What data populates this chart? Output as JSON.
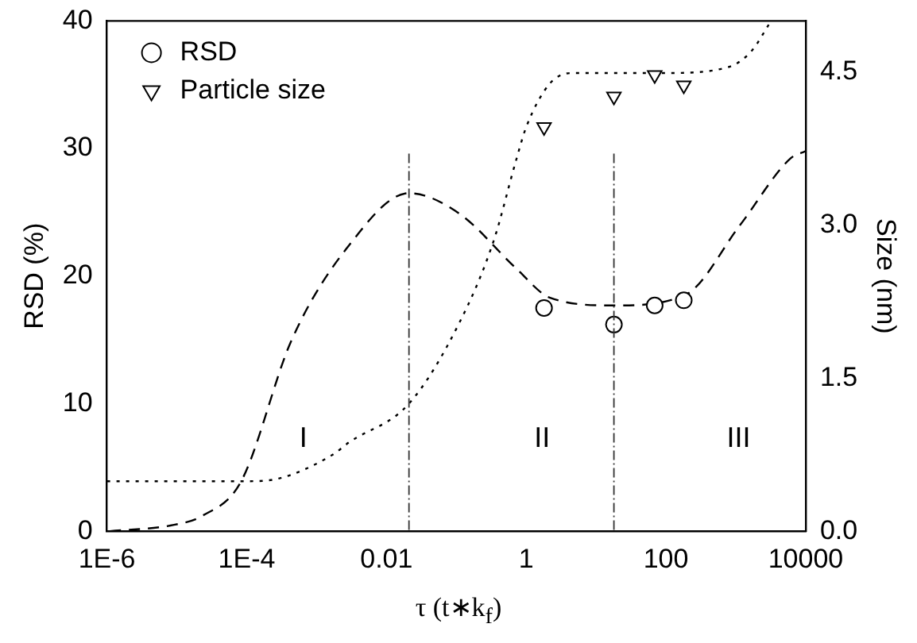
{
  "chart_data": {
    "type": "scatter",
    "xlabel": "τ (t∗k$_{f}$)",
    "ylabel": "RSD (%)",
    "y2label": "Size (nm)",
    "log": "x",
    "grid": false,
    "legend": "top left",
    "xlim": [
      1e-06,
      10000
    ],
    "xticks": [
      {
        "value": 1e-06,
        "label": "1E-6"
      },
      {
        "value": 0.0001,
        "label": "1E-4"
      },
      0.01,
      1,
      100,
      10000
    ],
    "ylim": [
      0,
      40
    ],
    "yticks": [
      0,
      10,
      20,
      30,
      40
    ],
    "y2lim": [
      0,
      5
    ],
    "y2ticks": [
      {
        "value": 0,
        "label": "0.0"
      },
      1.5,
      {
        "value": 3,
        "label": "3.0"
      },
      4.5
    ],
    "series": [
      {
        "name": "RSD",
        "marker": "circle",
        "color": "#000000",
        "x": [
          1.8,
          18,
          69,
          180
        ],
        "values": [
          17.5,
          16.2,
          17.7,
          18.1
        ]
      },
      {
        "name": "Particle size",
        "marker": "triangle",
        "axis": "y2",
        "color": "#000000",
        "x": [
          1.8,
          18,
          69,
          180
        ],
        "values": [
          3.96,
          4.26,
          4.47,
          4.37
        ]
      },
      {
        "type": "line",
        "marker": "none",
        "line_style": "dashed",
        "color": "#000000",
        "x": [
          1.1e-06,
          9.1e-06,
          2.3e-05,
          8.3e-05,
          0.00044,
          0.0029,
          0.021,
          0.11,
          0.72,
          2.2,
          18,
          186,
          1150,
          6000,
          10000
        ],
        "values": [
          0,
          0.5,
          1.2,
          3.9,
          15.0,
          22.4,
          26.5,
          24.9,
          20.6,
          18.3,
          17.7,
          18.5,
          24.0,
          29.2,
          29.8
        ]
      },
      {
        "type": "line",
        "marker": "none",
        "line_style": "dotted",
        "axis": "y2",
        "color": "#000000",
        "x": [
          1e-06,
          0.0001,
          0.0003,
          0.0017,
          0.0029,
          0.021,
          0.11,
          0.34,
          0.72,
          1,
          2.2,
          4.6,
          100,
          800,
          1700,
          3000
        ],
        "values": [
          0.49,
          0.49,
          0.52,
          0.75,
          0.87,
          1.25,
          2.04,
          2.84,
          3.64,
          3.96,
          4.39,
          4.49,
          4.49,
          4.55,
          4.71,
          4.97
        ]
      }
    ],
    "ref_lines": [
      {
        "axis": "x",
        "value": 0.021
      },
      {
        "axis": "x",
        "value": 18
      }
    ],
    "annotations": [
      "I",
      "II",
      "III"
    ]
  }
}
